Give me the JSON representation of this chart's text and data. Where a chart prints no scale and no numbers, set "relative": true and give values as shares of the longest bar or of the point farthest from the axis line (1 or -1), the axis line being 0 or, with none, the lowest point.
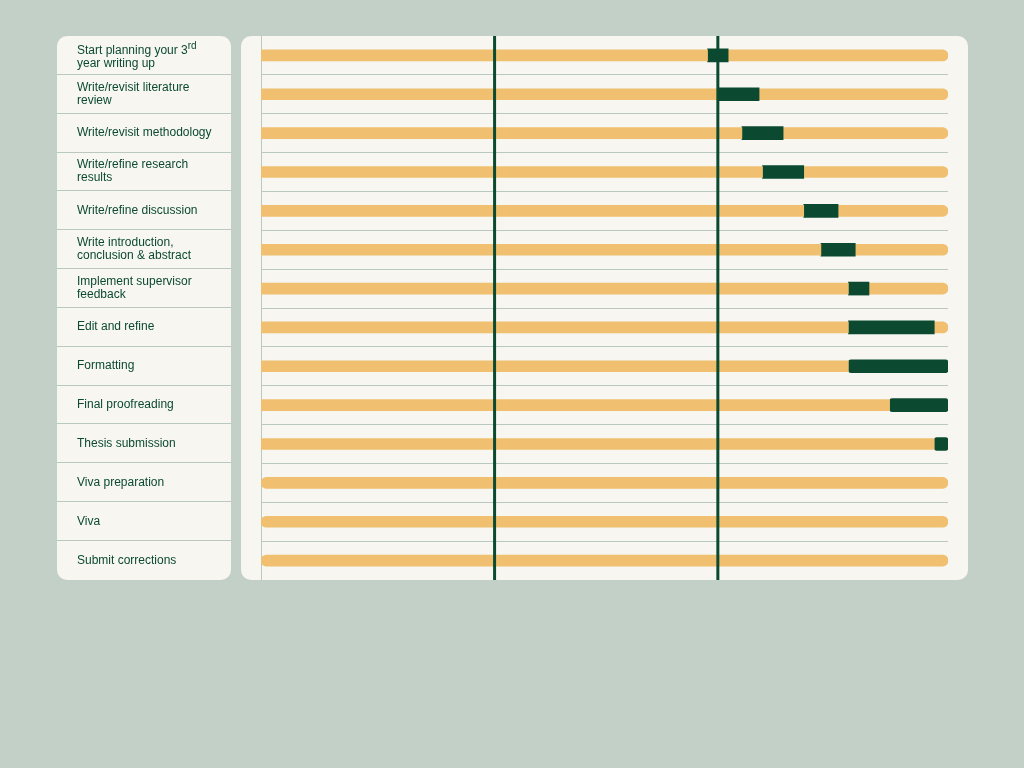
{
  "chart_data": {
    "type": "bar",
    "orientation": "horizontal",
    "stacked": true,
    "relative": true,
    "grid": "y",
    "legend": false,
    "categories": [
      "Start planning your 3$^{rd}$ year writing up",
      "Write/revisit literature review",
      "Write/revisit methodology",
      "Write/refine research results",
      "Write/refine discussion",
      "Write introduction, conclusion & abstract",
      "Implement supervisor feedback",
      "Edit and refine",
      "Formatting",
      "Final proofreading",
      "Thesis submission",
      "Viva preparation",
      "Viva",
      "Submit corrections"
    ],
    "series": [
      {
        "color": "#f0c070",
        "values": [
          0.65,
          0.665,
          0.7,
          0.73,
          0.79,
          0.815,
          0.855,
          0.855,
          0.855,
          0.915,
          0.98,
          1,
          1,
          1
        ]
      },
      {
        "color": "#0b4a30",
        "values": [
          0.03,
          0.06,
          0.06,
          0.06,
          0.05,
          0.05,
          0.03,
          0.125,
          0.145,
          0.085,
          0.02,
          null,
          null,
          null
        ]
      },
      {
        "color": "#f0c070",
        "values": [
          0.32,
          0.275,
          0.24,
          0.21,
          0.16,
          0.135,
          0.115,
          0.02,
          null,
          null,
          null,
          null,
          null,
          null
        ]
      }
    ],
    "ref_lines": [
      {
        "axis": "x",
        "value": 0.34,
        "color": "#0b4a30"
      },
      {
        "axis": "x",
        "value": 0.665,
        "color": "#0b4a30"
      }
    ]
  }
}
